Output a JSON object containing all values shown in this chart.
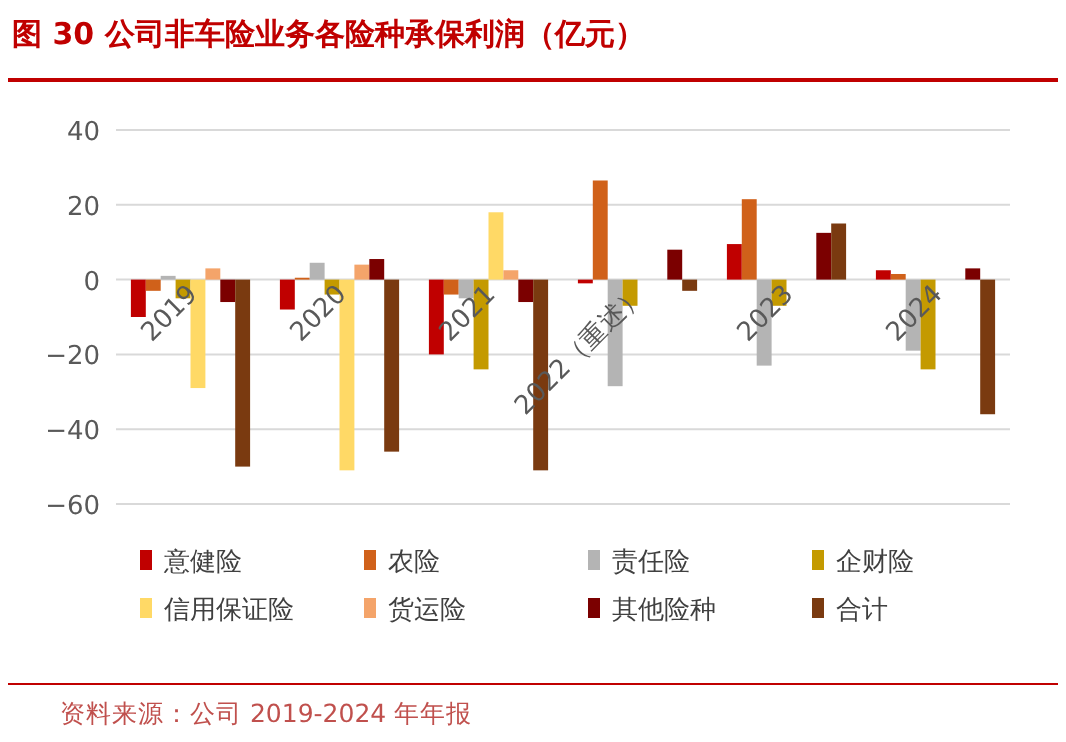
{
  "chart_data": {
    "type": "bar",
    "title": "图 30 公司非车险业务各险种承保利润（亿元）",
    "categories": [
      "2019",
      "2020",
      "2021",
      "2022（重述）",
      "2023",
      "2024"
    ],
    "series": [
      {
        "name": "意健险",
        "color": "#c00000",
        "values": [
          -10,
          -8,
          -20,
          -1,
          9.5,
          2.5
        ]
      },
      {
        "name": "农险",
        "color": "#d0611a",
        "values": [
          -3,
          0.5,
          -4,
          26.5,
          21.5,
          1.5
        ]
      },
      {
        "name": "责任险",
        "color": "#b4b4b4",
        "values": [
          1,
          4.5,
          -5,
          -28.5,
          -23,
          -19
        ]
      },
      {
        "name": "企财险",
        "color": "#c49a00",
        "values": [
          -5,
          -4,
          -24,
          -7,
          -7,
          -24
        ]
      },
      {
        "name": "信用保证险",
        "color": "#ffd966",
        "values": [
          -29,
          -51,
          18,
          null,
          null,
          null
        ]
      },
      {
        "name": "货运险",
        "color": "#f4a46a",
        "values": [
          3,
          4,
          2.5,
          null,
          null,
          null
        ]
      },
      {
        "name": "其他险种",
        "color": "#7b0000",
        "values": [
          -6,
          5.5,
          -6,
          8,
          12.5,
          3
        ]
      },
      {
        "name": "合计",
        "color": "#7a3a10",
        "values": [
          -50,
          -46,
          -51,
          -3,
          15,
          -36
        ]
      }
    ],
    "ylim": [
      -60,
      40
    ],
    "yticks": [
      -60,
      -40,
      -20,
      0,
      20,
      40
    ],
    "grid": "y",
    "legend": "bottom",
    "annotations": [
      "资料来源：公司 2019-2024 年年报"
    ]
  }
}
